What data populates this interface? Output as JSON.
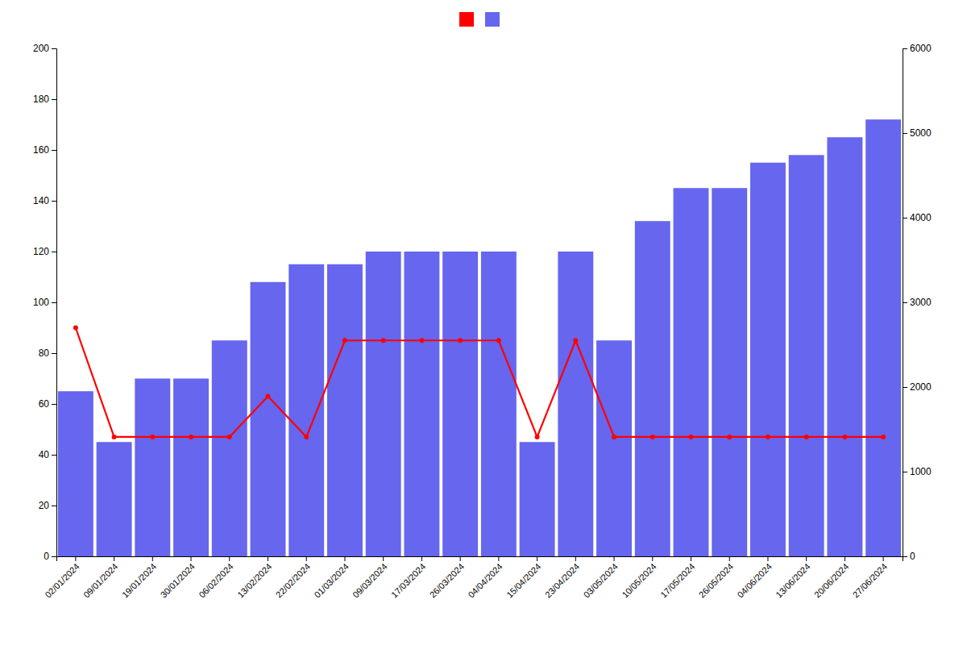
{
  "chart_data": {
    "type": "bar",
    "categories": [
      "02/01/2024",
      "09/01/2024",
      "19/01/2024",
      "30/01/2024",
      "06/02/2024",
      "13/02/2024",
      "22/02/2024",
      "01/03/2024",
      "09/03/2024",
      "17/03/2024",
      "26/03/2024",
      "04/04/2024",
      "15/04/2024",
      "23/04/2024",
      "03/05/2024",
      "10/05/2024",
      "17/05/2024",
      "26/05/2024",
      "04/06/2024",
      "13/06/2024",
      "20/06/2024",
      "27/06/2024"
    ],
    "series": [
      {
        "type": "bar",
        "color": "#6666ee",
        "values": [
          65,
          45,
          70,
          70,
          85,
          108,
          115,
          115,
          120,
          120,
          120,
          120,
          45,
          120,
          85,
          132,
          145,
          145,
          155,
          158,
          165,
          172
        ]
      },
      {
        "type": "line",
        "color": "#ff0000",
        "marker": "circle",
        "values": [
          90,
          47,
          47,
          47,
          47,
          63,
          47,
          85,
          85,
          85,
          85,
          85,
          47,
          85,
          47,
          47,
          47,
          47,
          47,
          47,
          47,
          47
        ]
      }
    ],
    "ylim": [
      0,
      200
    ],
    "yticks": [
      0,
      20,
      40,
      60,
      80,
      100,
      120,
      140,
      160,
      180,
      200
    ],
    "y2lim": [
      0,
      6000
    ],
    "y2ticks": [
      0,
      1000,
      2000,
      3000,
      4000,
      5000,
      6000
    ],
    "grid": false,
    "legend": "top"
  }
}
